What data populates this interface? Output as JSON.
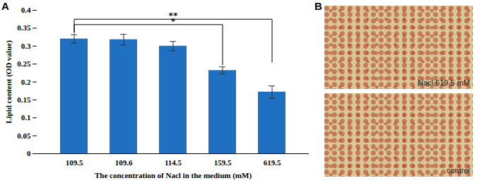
{
  "chart_data": {
    "type": "bar",
    "panel_label": "A",
    "categories": [
      "109.5",
      "109.6",
      "114.5",
      "159.5",
      "619.5"
    ],
    "values": [
      0.32,
      0.318,
      0.3,
      0.232,
      0.172
    ],
    "errors": [
      0.012,
      0.015,
      0.013,
      0.01,
      0.017
    ],
    "color": "#1f70c1",
    "xlabel": "The concentration of Nacl in the medium (mM)",
    "ylabel": "Lipid content (OD value)",
    "ylim": [
      0,
      0.4
    ],
    "yticks": [
      0,
      0.05,
      0.1,
      0.15,
      0.2,
      0.25,
      0.3,
      0.35,
      0.4
    ],
    "significance": [
      {
        "from": "109.5",
        "to": "159.5",
        "label": "*",
        "y": 0.36
      },
      {
        "from": "109.5",
        "to": "619.5",
        "label": "**",
        "y": 0.375
      }
    ]
  },
  "panel_b": {
    "label": "B",
    "images": [
      {
        "caption": "Nacl 619.5 mM"
      },
      {
        "caption": "control"
      }
    ]
  }
}
